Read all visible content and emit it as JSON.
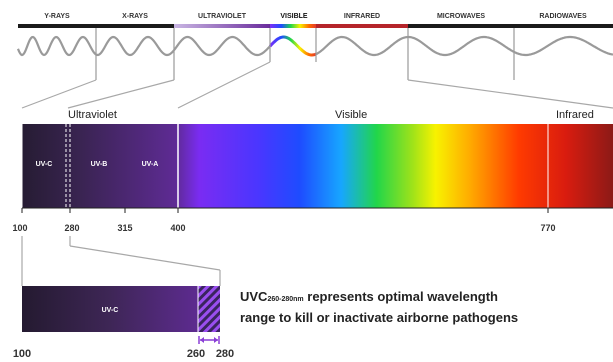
{
  "spectrum_bands": [
    {
      "label": "Y-RAYS",
      "color": "#1a1a1a"
    },
    {
      "label": "X-RAYS",
      "color": "#1a1a1a"
    },
    {
      "label": "ULTRAVIOLET",
      "color": "#6a2c9c"
    },
    {
      "label": "VISIBLE",
      "color": "#e33b2a"
    },
    {
      "label": "INFRARED",
      "color": "#b5242a"
    },
    {
      "label": "MICROWAVES",
      "color": "#1a1a1a"
    },
    {
      "label": "RADIOWAVES",
      "color": "#1a1a1a"
    }
  ],
  "sections": {
    "ultraviolet": "Ultraviolet",
    "visible": "Visible",
    "infrared": "Infrared"
  },
  "wide_bar_labels": {
    "uvc": "UV-C",
    "uvb": "UV-B",
    "uva": "UV-A"
  },
  "wide_ticks": [
    "100",
    "280",
    "315",
    "400",
    "770"
  ],
  "zoom_bar_label": "UV-C",
  "zoom_ticks": [
    "100",
    "260",
    "280"
  ],
  "caption": {
    "prefix": "UVC",
    "subscript": "260-280nm",
    "line1_rest": " represents optimal wavelength",
    "line2": "range to kill or inactivate airborne pathogens"
  },
  "colors": {
    "uv_dark": "#2a1f3a",
    "uv_purple": "#6b2ea8",
    "violet": "#7b2ff7",
    "arrow": "#8a3fd6"
  }
}
